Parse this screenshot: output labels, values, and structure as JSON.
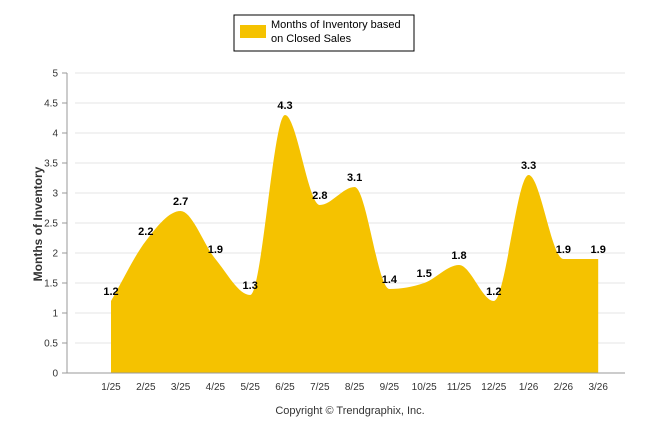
{
  "chart_data": {
    "type": "area",
    "categories": [
      "1/25",
      "2/25",
      "3/25",
      "4/25",
      "5/25",
      "6/25",
      "7/25",
      "8/25",
      "9/25",
      "10/25",
      "11/25",
      "12/25",
      "1/26",
      "2/26",
      "3/26"
    ],
    "series": [
      {
        "name": "Months of Inventory based on Closed Sales",
        "legend_lines": [
          "Months of Inventory based",
          "on Closed Sales"
        ],
        "values": [
          1.2,
          2.2,
          2.7,
          1.9,
          1.3,
          4.3,
          2.8,
          3.1,
          1.4,
          1.5,
          1.8,
          1.2,
          3.3,
          1.9,
          1.9
        ],
        "labels": [
          "1.2",
          "2.2",
          "2.7",
          "1.9",
          "1.3",
          "4.3",
          "2.8",
          "3.1",
          "1.4",
          "1.5",
          "1.8",
          "1.2",
          "3.3",
          "1.9",
          "1.9"
        ],
        "color": "#f5c200"
      }
    ],
    "ylabel": "Months of Inventory",
    "xlabel": "",
    "ylim": [
      0,
      5
    ],
    "yticks": [
      "0",
      "0.5",
      "1",
      "1.5",
      "2",
      "2.5",
      "3",
      "3.5",
      "4",
      "4.5",
      "5"
    ],
    "grid": true,
    "legend_position": "top-center",
    "credit": "Copyright © Trendgraphix, Inc."
  }
}
